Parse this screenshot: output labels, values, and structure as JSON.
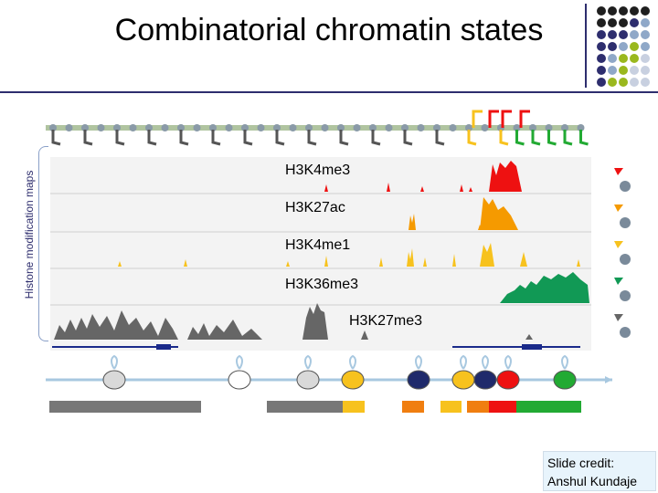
{
  "slide": {
    "title": "Combinatorial chromatin states",
    "side_label": "Histone modification maps",
    "credit_line1": "Slide credit:",
    "credit_line2": "Anshul Kundaje"
  },
  "tracks": [
    {
      "label": "H3K4me3",
      "color": "#ee1111"
    },
    {
      "label": "H3K27ac",
      "color": "#f59a00"
    },
    {
      "label": "H3K4me1",
      "color": "#f7c21e"
    },
    {
      "label": "H3K36me3",
      "color": "#119955"
    },
    {
      "label": "H3K27me3",
      "color": "#666666"
    }
  ],
  "nucleosomes": [
    {
      "color": "#d9d9d9"
    },
    {
      "color": "#ffffff"
    },
    {
      "color": "#d9d9d9"
    },
    {
      "color": "#f7c21e"
    },
    {
      "color": "#1f2a6b"
    },
    {
      "color": "#f7c21e"
    },
    {
      "color": "#1f2a6b"
    },
    {
      "color": "#ee1111"
    },
    {
      "color": "#22aa33"
    }
  ],
  "state_bar": [
    {
      "color": "#777777",
      "frac": 0.28
    },
    {
      "color": "#ffffff",
      "frac": 0.12
    },
    {
      "color": "#777777",
      "frac": 0.14
    },
    {
      "color": "#f7c21e",
      "frac": 0.04
    },
    {
      "color": "#ffffff",
      "frac": 0.07
    },
    {
      "color": "#f07e10",
      "frac": 0.04
    },
    {
      "color": "#ffffff",
      "frac": 0.03
    },
    {
      "color": "#f7c21e",
      "frac": 0.04
    },
    {
      "color": "#ffffff",
      "frac": 0.01
    },
    {
      "color": "#f07e10",
      "frac": 0.04
    },
    {
      "color": "#ee1111",
      "frac": 0.05
    },
    {
      "color": "#22aa33",
      "frac": 0.12
    }
  ],
  "legend_dots": {
    "colors": [
      "#1f1f1f",
      "#2e2e6e",
      "#8fa8c8",
      "#9ab81e",
      "#c8d0e0"
    ]
  }
}
